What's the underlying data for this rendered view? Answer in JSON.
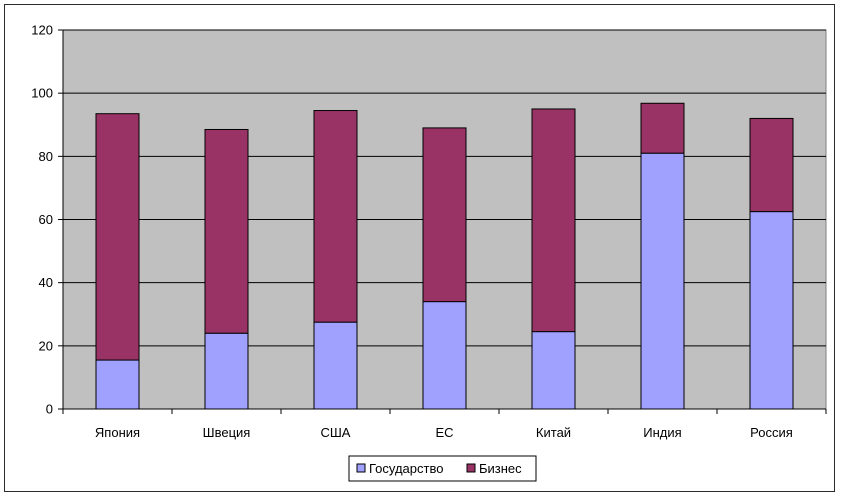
{
  "chart_data": {
    "type": "bar",
    "stacked": true,
    "categories": [
      "Япония",
      "Швеция",
      "США",
      "ЕС",
      "Китай",
      "Индия",
      "Россия"
    ],
    "series": [
      {
        "name": "Государство",
        "color": "#a0a0ff",
        "values": [
          15.5,
          24,
          27.5,
          34,
          24.5,
          81,
          62.5
        ]
      },
      {
        "name": "Бизнес",
        "color": "#993366",
        "values": [
          78,
          64.5,
          67,
          55,
          70.5,
          15.8,
          29.5
        ]
      }
    ],
    "title": "",
    "xlabel": "",
    "ylabel": "",
    "ylim": [
      0,
      120
    ],
    "yticks": [
      0,
      20,
      40,
      60,
      80,
      100,
      120
    ],
    "grid": true,
    "plot_background": "#c0c0c0",
    "legend_position": "bottom-center"
  }
}
